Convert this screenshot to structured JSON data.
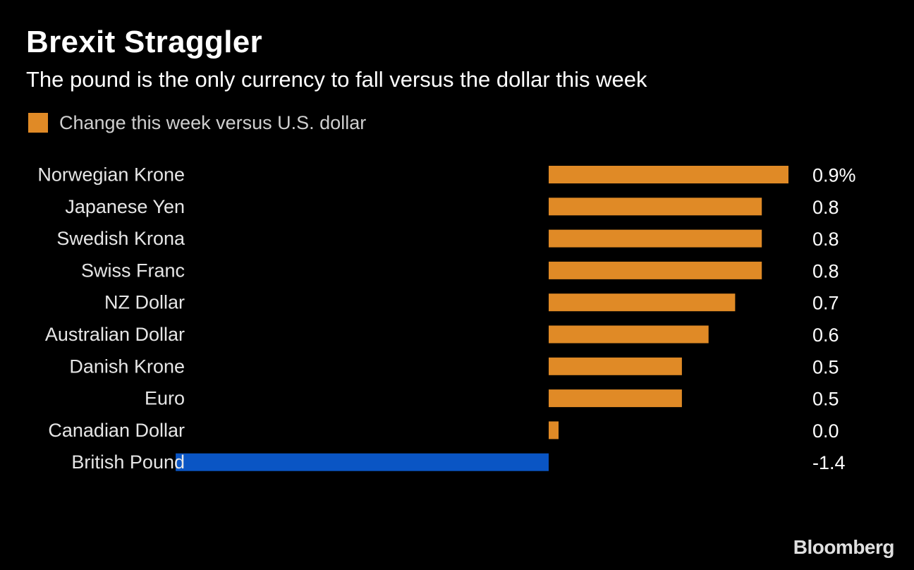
{
  "chart_data": {
    "type": "bar",
    "orientation": "horizontal",
    "title": "Brexit Straggler",
    "subtitle": "The pound is the only currency to fall versus the dollar this week",
    "legend": [
      {
        "label": "Change this week versus U.S. dollar",
        "color": "#e08a26"
      }
    ],
    "legend_placement": "top-left",
    "grid": false,
    "categories": [
      "Norwegian Krone",
      "Japanese Yen",
      "Swedish Krona",
      "Swiss Franc",
      "NZ Dollar",
      "Australian Dollar",
      "Danish Krone",
      "Euro",
      "Canadian Dollar",
      "British Pound"
    ],
    "values": [
      0.9,
      0.8,
      0.8,
      0.8,
      0.7,
      0.6,
      0.5,
      0.5,
      0.0,
      -1.4
    ],
    "value_labels": [
      "0.9%",
      "0.8",
      "0.8",
      "0.8",
      "0.7",
      "0.6",
      "0.5",
      "0.5",
      "0.0",
      "-1.4"
    ],
    "positive_color": "#e08a26",
    "negative_color": "#0a55c4",
    "xlim": [
      -1.4,
      0.9
    ]
  },
  "brand": {
    "logo_text": "Bloomberg"
  }
}
